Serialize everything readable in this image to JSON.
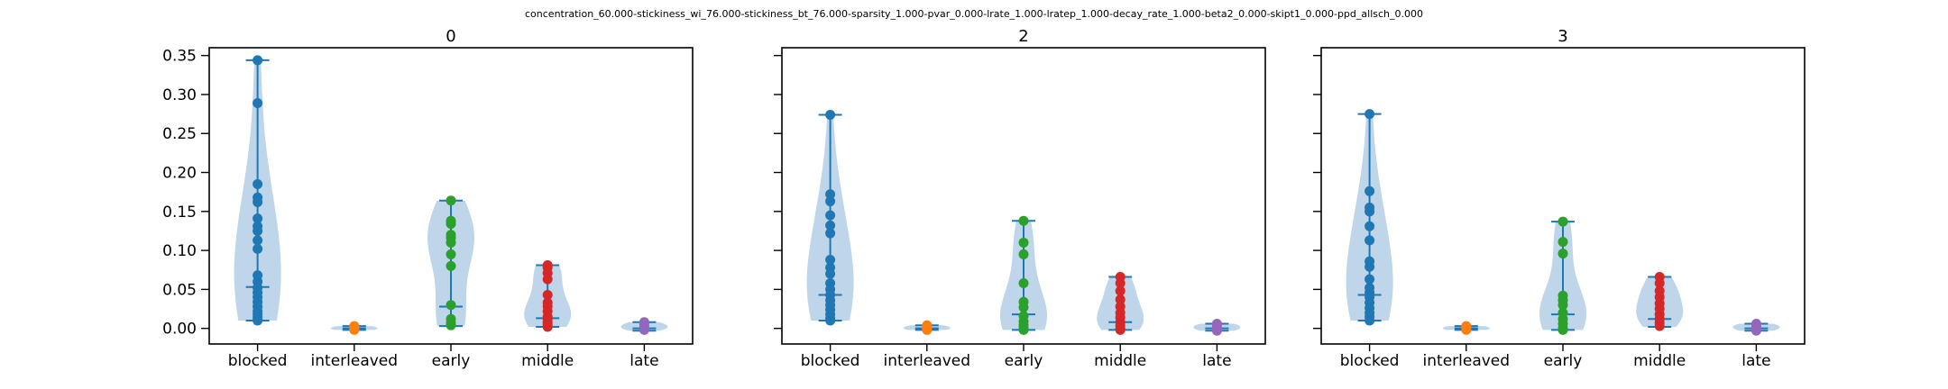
{
  "figure": {
    "suptitle": "concentration_60.000-stickiness_wi_76.000-stickiness_bt_76.000-sparsity_1.000-pvar_0.000-lrate_1.000-lratep_1.000-decay_rate_1.000-beta2_0.000-skipt1_0.000-ppd_allsch_0.000"
  },
  "colors": {
    "blocked": "#1f77b4",
    "interleaved": "#ff7f0e",
    "early": "#2ca02c",
    "middle": "#d62728",
    "late": "#9467bd",
    "violin_body": "#b7d0e8",
    "violin_lines": "#1f77b4"
  },
  "chart_data": [
    {
      "type": "violin",
      "title": "0",
      "categories": [
        "blocked",
        "interleaved",
        "early",
        "middle",
        "late"
      ],
      "yticks": [
        "0.00",
        "0.05",
        "0.10",
        "0.15",
        "0.20",
        "0.25",
        "0.30",
        "0.35"
      ],
      "ylim": [
        -0.02,
        0.36
      ],
      "grid": false,
      "series": [
        {
          "category": "blocked",
          "min": 0.01,
          "median": 0.053,
          "max": 0.344,
          "points": [
            0.344,
            0.289,
            0.185,
            0.168,
            0.162,
            0.141,
            0.131,
            0.125,
            0.113,
            0.102,
            0.068,
            0.06,
            0.052,
            0.046,
            0.04,
            0.034,
            0.028,
            0.022,
            0.018,
            0.014,
            0.01
          ]
        },
        {
          "category": "interleaved",
          "min": -0.002,
          "median": 0.0,
          "max": 0.003,
          "points": [
            0.003,
            0.001,
            0.0,
            -0.001,
            -0.002
          ]
        },
        {
          "category": "early",
          "min": 0.003,
          "median": 0.028,
          "max": 0.164,
          "points": [
            0.164,
            0.138,
            0.134,
            0.12,
            0.116,
            0.11,
            0.095,
            0.08,
            0.03,
            0.012,
            0.007,
            0.004
          ]
        },
        {
          "category": "middle",
          "min": 0.002,
          "median": 0.013,
          "max": 0.081,
          "points": [
            0.081,
            0.078,
            0.071,
            0.063,
            0.043,
            0.033,
            0.028,
            0.022,
            0.015,
            0.012,
            0.008,
            0.005,
            0.002
          ]
        },
        {
          "category": "late",
          "min": -0.003,
          "median": 0.0,
          "max": 0.008,
          "points": [
            0.008,
            0.005,
            0.002,
            0.0,
            -0.002
          ]
        }
      ]
    },
    {
      "type": "violin",
      "title": "2",
      "categories": [
        "blocked",
        "interleaved",
        "early",
        "middle",
        "late"
      ],
      "yticks": [
        "0.00",
        "0.05",
        "0.10",
        "0.15",
        "0.20",
        "0.25",
        "0.30",
        "0.35"
      ],
      "ylim": [
        -0.02,
        0.36
      ],
      "grid": false,
      "series": [
        {
          "category": "blocked",
          "min": 0.01,
          "median": 0.043,
          "max": 0.274,
          "points": [
            0.274,
            0.172,
            0.163,
            0.145,
            0.132,
            0.122,
            0.088,
            0.078,
            0.07,
            0.058,
            0.05,
            0.043,
            0.036,
            0.03,
            0.024,
            0.018,
            0.013,
            0.01
          ]
        },
        {
          "category": "interleaved",
          "min": -0.002,
          "median": 0.0,
          "max": 0.004,
          "points": [
            0.004,
            0.001,
            0.0,
            -0.002
          ]
        },
        {
          "category": "early",
          "min": -0.002,
          "median": 0.018,
          "max": 0.138,
          "points": [
            0.138,
            0.11,
            0.095,
            0.058,
            0.034,
            0.027,
            0.016,
            0.009,
            0.004,
            0.0,
            -0.002
          ]
        },
        {
          "category": "middle",
          "min": -0.002,
          "median": 0.008,
          "max": 0.066,
          "points": [
            0.066,
            0.058,
            0.048,
            0.037,
            0.028,
            0.02,
            0.014,
            0.008,
            0.004,
            0.0,
            -0.002
          ]
        },
        {
          "category": "late",
          "min": -0.003,
          "median": 0.0,
          "max": 0.006,
          "points": [
            0.006,
            0.003,
            0.0,
            -0.003
          ]
        }
      ]
    },
    {
      "type": "violin",
      "title": "3",
      "categories": [
        "blocked",
        "interleaved",
        "early",
        "middle",
        "late"
      ],
      "yticks": [
        "0.00",
        "0.05",
        "0.10",
        "0.15",
        "0.20",
        "0.25",
        "0.30",
        "0.35"
      ],
      "ylim": [
        -0.02,
        0.36
      ],
      "grid": false,
      "series": [
        {
          "category": "blocked",
          "min": 0.01,
          "median": 0.043,
          "max": 0.275,
          "points": [
            0.275,
            0.176,
            0.155,
            0.15,
            0.131,
            0.113,
            0.086,
            0.079,
            0.063,
            0.052,
            0.046,
            0.04,
            0.033,
            0.026,
            0.02,
            0.015,
            0.01
          ]
        },
        {
          "category": "interleaved",
          "min": -0.002,
          "median": 0.0,
          "max": 0.003,
          "points": [
            0.003,
            0.0,
            -0.002
          ]
        },
        {
          "category": "early",
          "min": -0.002,
          "median": 0.018,
          "max": 0.137,
          "points": [
            0.137,
            0.111,
            0.096,
            0.042,
            0.036,
            0.03,
            0.02,
            0.012,
            0.006,
            0.0,
            -0.002
          ]
        },
        {
          "category": "middle",
          "min": 0.002,
          "median": 0.012,
          "max": 0.066,
          "points": [
            0.066,
            0.058,
            0.048,
            0.04,
            0.032,
            0.025,
            0.018,
            0.012,
            0.007,
            0.003
          ]
        },
        {
          "category": "late",
          "min": -0.003,
          "median": 0.0,
          "max": 0.006,
          "points": [
            0.006,
            0.003,
            0.0,
            -0.003
          ]
        }
      ]
    }
  ]
}
